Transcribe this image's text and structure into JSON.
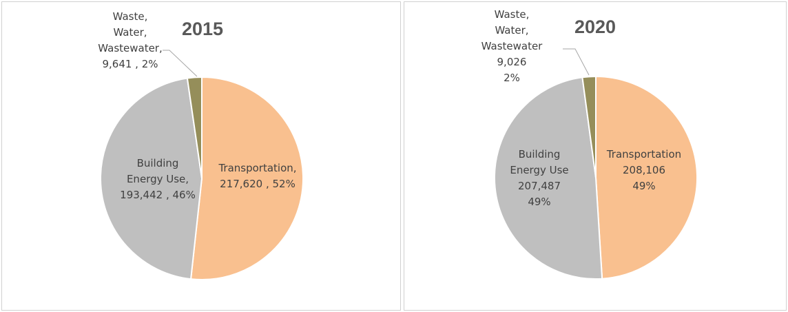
{
  "colors": {
    "Transportation": "#f9c08f",
    "Building Energy Use": "#bfbfbf",
    "Waste, Water, Wastewater": "#958e5a"
  },
  "chart_data": [
    {
      "type": "pie",
      "title": "2015",
      "slices": [
        {
          "name": "Transportation",
          "value": 217620,
          "percent": 52,
          "label_lines": [
            "Transportation,",
            "217,620 , 52%"
          ]
        },
        {
          "name": "Building Energy Use",
          "value": 193442,
          "percent": 46,
          "label_lines": [
            "Building",
            "Energy Use,",
            "193,442 , 46%"
          ]
        },
        {
          "name": "Waste, Water, Wastewater",
          "value": 9641,
          "percent": 2,
          "label_lines": [
            "Waste,",
            "Water,",
            "Wastewater,",
            "9,641 , 2%"
          ]
        }
      ]
    },
    {
      "type": "pie",
      "title": "2020",
      "slices": [
        {
          "name": "Transportation",
          "value": 208106,
          "percent": 49,
          "label_lines": [
            "Transportation",
            "208,106",
            "49%"
          ]
        },
        {
          "name": "Building Energy Use",
          "value": 207487,
          "percent": 49,
          "label_lines": [
            "Building",
            "Energy Use",
            "207,487",
            "49%"
          ]
        },
        {
          "name": "Waste, Water, Wastewater",
          "value": 9026,
          "percent": 2,
          "label_lines": [
            "Waste,",
            "Water,",
            "Wastewater",
            "9,026",
            "2%"
          ]
        }
      ]
    }
  ]
}
